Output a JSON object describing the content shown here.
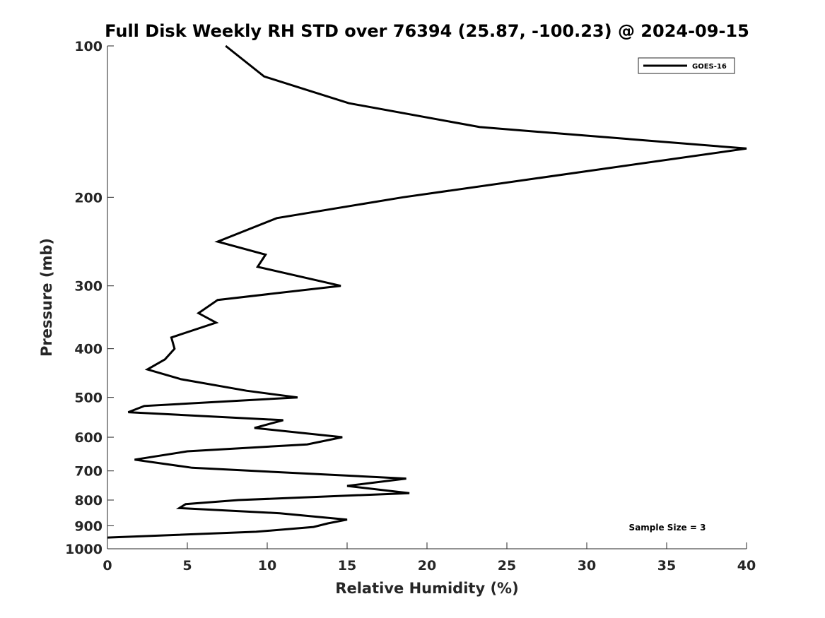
{
  "chart_data": {
    "type": "line",
    "title": "Full Disk Weekly RH STD over 76394 (25.87, -100.23) @ 2024-09-15",
    "xlabel": "Relative Humidity (%)",
    "ylabel": "Pressure (mb)",
    "xlim": [
      0,
      40
    ],
    "ylim": [
      100,
      1000
    ],
    "y_scale": "log",
    "y_reversed": true,
    "x_ticks": [
      0,
      5,
      10,
      15,
      20,
      25,
      30,
      35,
      40
    ],
    "y_ticks": [
      100,
      200,
      300,
      400,
      500,
      600,
      700,
      800,
      900,
      1000
    ],
    "grid": false,
    "legend_position": "top-right",
    "annotation": "Sample Size = 3",
    "series": [
      {
        "name": "GOES-16",
        "color": "#000000",
        "x": [
          7.4,
          9.8,
          15.1,
          23.3,
          40.0,
          18.5,
          10.6,
          6.9,
          9.9,
          9.4,
          14.6,
          6.9,
          5.7,
          6.8,
          4.0,
          4.2,
          3.6,
          2.5,
          4.6,
          8.7,
          11.9,
          2.3,
          1.3,
          11.0,
          9.2,
          14.7,
          12.5,
          5.0,
          1.7,
          5.3,
          18.7,
          15.0,
          18.9,
          8.2,
          4.9,
          4.5,
          10.8,
          15.0,
          13.8,
          12.9,
          9.3,
          0.0
        ],
        "y": [
          100,
          115,
          130,
          145,
          160,
          200,
          220,
          245,
          260,
          275,
          300,
          320,
          340,
          355,
          380,
          400,
          420,
          440,
          460,
          485,
          500,
          520,
          535,
          555,
          575,
          600,
          620,
          640,
          665,
          690,
          725,
          750,
          775,
          800,
          815,
          830,
          850,
          875,
          890,
          905,
          925,
          950
        ]
      }
    ]
  }
}
